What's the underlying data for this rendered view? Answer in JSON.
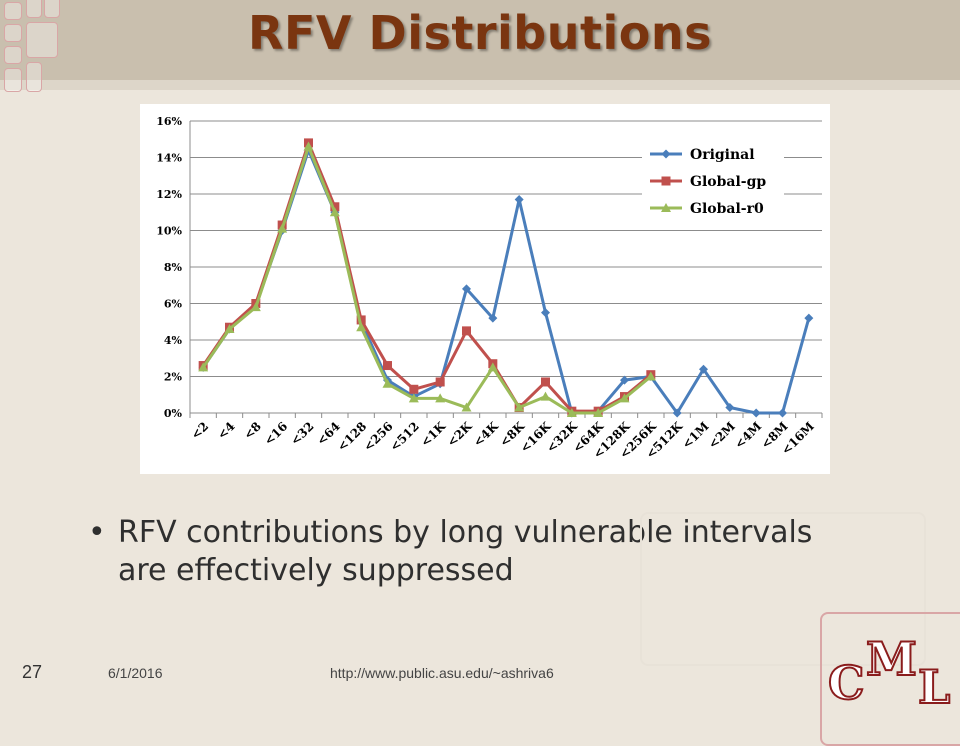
{
  "slide": {
    "title": "RFV Distributions",
    "bullet": "RFV contributions by long vulnerable intervals are effectively suppressed",
    "slide_number": "27",
    "date": "6/1/2016",
    "url": "http://www.public.asu.edu/~ashriva6",
    "logo_letters": [
      "C",
      "M",
      "L"
    ]
  },
  "chart_data": {
    "type": "line",
    "title": "",
    "xlabel": "",
    "ylabel": "",
    "categories": [
      "<2",
      "<4",
      "<8",
      "<16",
      "<32",
      "<64",
      "<128",
      "<256",
      "<512",
      "<1K",
      "<2K",
      "<4K",
      "<8K",
      "<16K",
      "<32K",
      "<64K",
      "<128K",
      "<256K",
      "<512K",
      "<1M",
      "<2M",
      "<4M",
      "<8M",
      "<16M"
    ],
    "ylim": [
      0,
      16
    ],
    "yticks": [
      "0%",
      "2%",
      "4%",
      "6%",
      "8%",
      "10%",
      "12%",
      "14%",
      "16%"
    ],
    "grid": true,
    "legend_position": "top-right",
    "series": [
      {
        "name": "Original",
        "color": "#4a7ebb",
        "marker": "diamond",
        "values": [
          2.5,
          4.6,
          5.9,
          10.0,
          14.4,
          11.0,
          5.0,
          1.8,
          0.9,
          1.6,
          6.8,
          5.2,
          11.7,
          5.5,
          0.0,
          0.1,
          1.8,
          2.0,
          0.0,
          2.4,
          0.3,
          0.0,
          0.0,
          5.2
        ]
      },
      {
        "name": "Global-gp",
        "color": "#c0504d",
        "marker": "square",
        "values": [
          2.6,
          4.7,
          6.0,
          10.3,
          14.8,
          11.3,
          5.1,
          2.6,
          1.3,
          1.7,
          4.5,
          2.7,
          0.3,
          1.7,
          0.1,
          0.1,
          0.9,
          2.1,
          null,
          null,
          null,
          null,
          null,
          null
        ]
      },
      {
        "name": "Global-r0",
        "color": "#9bbb59",
        "marker": "triangle",
        "values": [
          2.5,
          4.6,
          5.8,
          10.1,
          14.6,
          11.0,
          4.7,
          1.6,
          0.8,
          0.8,
          0.3,
          2.5,
          0.3,
          0.9,
          0.0,
          0.0,
          0.8,
          2.0,
          null,
          null,
          null,
          null,
          null,
          null
        ]
      }
    ]
  }
}
